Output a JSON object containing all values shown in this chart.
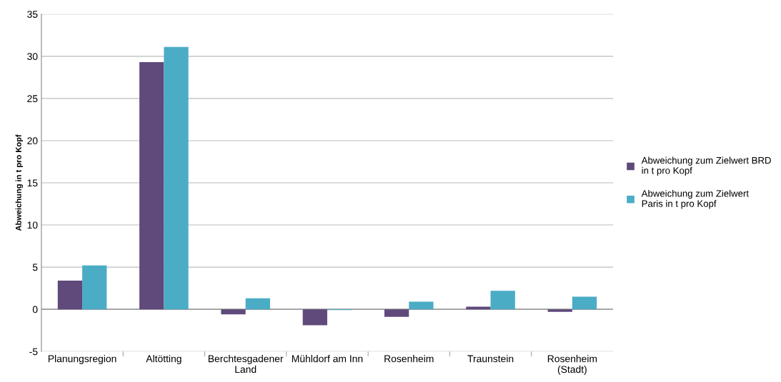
{
  "chart_data": {
    "type": "bar",
    "ylabel": "Abweichung in t pro Kopf",
    "categories": [
      "Planungsregion",
      "Altötting",
      "Berchtesgadener Land",
      "Mühldorf am Inn",
      "Rosenheim",
      "Traunstein",
      "Rosenheim (Stadt)"
    ],
    "series": [
      {
        "name": "Abweichung zum Zielwert BRD in t pro Kopf",
        "color": "#5f4a7b",
        "values": [
          3.4,
          29.3,
          -0.6,
          -1.9,
          -0.9,
          0.3,
          -0.3
        ]
      },
      {
        "name": "Abweichung zum Zielwert Paris in t pro Kopf",
        "color": "#4bacc6",
        "values": [
          5.2,
          31.1,
          1.3,
          -0.1,
          0.9,
          2.2,
          1.5
        ]
      }
    ],
    "ylim": [
      -5,
      35
    ],
    "yticks": [
      -5,
      0,
      5,
      10,
      15,
      20,
      25,
      30,
      35
    ],
    "grid": "y",
    "legend": "right"
  }
}
